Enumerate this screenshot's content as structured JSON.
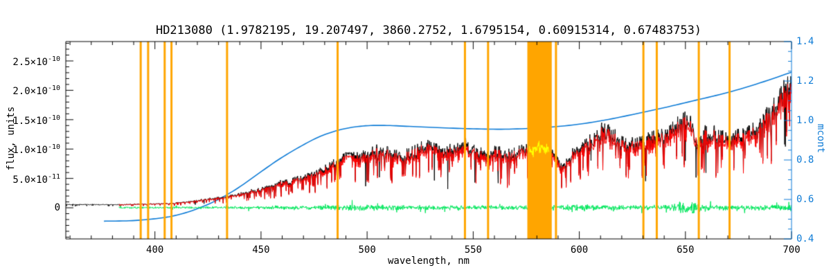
{
  "chart_data": {
    "type": "line",
    "title": "HD213080   (1.9782195, 19.207497, 3860.2752, 1.6795154, 0.60915314, 0.67483753)",
    "xlabel": "wavelength, nm",
    "ylabel_left": "flux, units",
    "ylabel_right": "mcont",
    "x_range": [
      358,
      700
    ],
    "y_left_range": [
      -5.3e-11,
      2.83e-10
    ],
    "y_right_range": [
      0.4,
      1.4
    ],
    "x_ticks": {
      "values": [
        400,
        450,
        500,
        550,
        600,
        650,
        700
      ],
      "labels": [
        "400",
        "450",
        "500",
        "550",
        "600",
        "650",
        "700"
      ],
      "minor_step": 10
    },
    "y_left_ticks": {
      "values": [
        0,
        5e-11,
        1e-10,
        1.5e-10,
        2e-10,
        2.5e-10
      ],
      "labels": [
        {
          "text": "0",
          "sup": ""
        },
        {
          "text": "5.0×10",
          "sup": "-11"
        },
        {
          "text": "1.0×10",
          "sup": "-10"
        },
        {
          "text": "1.5×10",
          "sup": "-10"
        },
        {
          "text": "2.0×10",
          "sup": "-10"
        },
        {
          "text": "2.5×10",
          "sup": "-10"
        }
      ],
      "minor_step": 1e-11
    },
    "y_right_ticks": {
      "values": [
        0.4,
        0.6,
        0.8,
        1.0,
        1.2,
        1.4
      ],
      "labels": [
        "0.4",
        "0.6",
        "0.8",
        "1.0",
        "1.2",
        "1.4"
      ],
      "minor_step": 0.05
    },
    "colors": {
      "axis": "#000000",
      "spectrum": "#000000",
      "corrected": "#ff0000",
      "residual": "#00e65c",
      "continuum": "#0d7bd6",
      "marker": "#ffa500",
      "masked": "#ffff00",
      "background": "#ffffff",
      "title": "#000000"
    },
    "series": [
      {
        "name": "observed spectrum",
        "color_key": "spectrum",
        "axis": "left",
        "style": "noisy line"
      },
      {
        "name": "corrected spectrum",
        "color_key": "corrected",
        "axis": "left",
        "style": "noisy line"
      },
      {
        "name": "residual noise",
        "color_key": "residual",
        "axis": "left",
        "style": "noise band"
      },
      {
        "name": "mcont continuum",
        "color_key": "continuum",
        "axis": "right",
        "style": "smooth line"
      },
      {
        "name": "masked telluric segment",
        "color_key": "masked",
        "axis": "left",
        "style": "noisy line"
      }
    ],
    "orange_lines": [
      393.3,
      396.8,
      404.6,
      407.8,
      434.0,
      486.1,
      546.1,
      557.0,
      589.0,
      630.2,
      636.5,
      656.3,
      670.8
    ],
    "orange_band": [
      575.5,
      587.0
    ],
    "yellow_segment": [
      576.5,
      585.8
    ],
    "red_start": 383,
    "continuum": {
      "x": [
        376,
        388,
        398,
        408,
        418,
        428,
        438,
        448,
        458,
        468,
        478,
        488,
        498,
        508,
        520,
        535,
        550,
        565,
        580,
        595,
        610,
        625,
        640,
        655,
        670,
        685,
        700
      ],
      "y": [
        0.49,
        0.492,
        0.5,
        0.515,
        0.545,
        0.59,
        0.65,
        0.725,
        0.8,
        0.865,
        0.92,
        0.955,
        0.972,
        0.975,
        0.97,
        0.963,
        0.958,
        0.956,
        0.962,
        0.975,
        0.998,
        1.03,
        1.065,
        1.103,
        1.142,
        1.19,
        1.245
      ]
    },
    "spectrum_envelope": {
      "scale": 1e-10,
      "x": [
        358,
        380,
        393,
        400,
        408,
        415,
        422,
        430,
        438,
        445,
        452,
        460,
        468,
        475,
        482,
        487,
        491,
        496,
        501,
        506,
        511,
        516,
        521,
        526,
        531,
        536,
        541,
        546,
        551,
        556,
        561,
        566,
        571,
        576,
        581,
        586,
        589,
        591,
        594,
        598,
        602,
        607,
        612,
        615,
        619,
        624,
        629,
        634,
        639,
        644,
        649,
        653,
        656,
        659,
        664,
        669,
        674,
        679,
        684,
        689,
        694,
        700
      ],
      "flux": [
        0.05,
        0.05,
        0.055,
        0.06,
        0.07,
        0.09,
        0.12,
        0.155,
        0.19,
        0.25,
        0.31,
        0.38,
        0.45,
        0.52,
        0.62,
        0.72,
        0.85,
        0.78,
        0.83,
        0.9,
        0.84,
        0.78,
        0.85,
        0.9,
        0.95,
        0.84,
        0.9,
        0.95,
        0.86,
        0.8,
        0.85,
        0.8,
        0.84,
        0.9,
        0.96,
        0.9,
        0.84,
        0.62,
        0.7,
        0.85,
        0.95,
        1.05,
        1.2,
        1.1,
        1.04,
        0.96,
        1.0,
        1.06,
        1.1,
        1.18,
        1.3,
        1.24,
        0.92,
        1.12,
        1.1,
        1.04,
        1.08,
        1.14,
        1.22,
        1.4,
        1.62,
        1.95
      ]
    },
    "green_envelope": {
      "x": [
        383,
        400,
        420,
        440,
        460,
        478,
        490,
        500,
        510,
        520,
        535,
        550,
        562,
        575,
        588,
        600,
        612,
        625,
        636,
        644,
        650,
        656,
        663,
        672,
        682,
        692,
        700
      ],
      "amp": [
        0.018,
        0.02,
        0.022,
        0.028,
        0.035,
        0.045,
        0.06,
        0.065,
        0.05,
        0.045,
        0.045,
        0.042,
        0.04,
        0.045,
        0.055,
        0.06,
        0.05,
        0.045,
        0.05,
        0.065,
        0.14,
        0.09,
        0.055,
        0.045,
        0.05,
        0.055,
        0.065
      ]
    },
    "noise": {
      "seed": 1337,
      "step": 0.18,
      "tri_low": 0.88,
      "tri_span": 0.35,
      "dip_prob": 0.12,
      "dip_min": 0.45,
      "dip_span": 0.4,
      "black_scale": 1.04,
      "red_scale": 0.98,
      "black_dip_prob": 0.012,
      "green_step": 0.15,
      "green_center": 0.003,
      "green_spike_prob": 0.05,
      "green_spike_mult": 2.3
    }
  }
}
